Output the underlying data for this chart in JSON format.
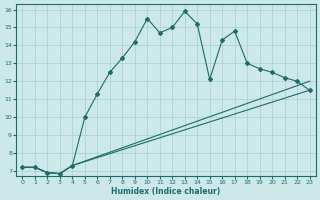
{
  "xlabel": "Humidex (Indice chaleur)",
  "bg_color": "#cce8e8",
  "grid_color": "#aacfcf",
  "line_color": "#1e6b6b",
  "xlim_min": -0.5,
  "xlim_max": 23.5,
  "ylim_min": 6.7,
  "ylim_max": 16.3,
  "xticks": [
    0,
    1,
    2,
    3,
    4,
    5,
    6,
    7,
    8,
    9,
    10,
    11,
    12,
    13,
    14,
    15,
    16,
    17,
    18,
    19,
    20,
    21,
    22,
    23
  ],
  "yticks": [
    7,
    8,
    9,
    10,
    11,
    12,
    13,
    14,
    15,
    16
  ],
  "wavy_x": [
    0,
    1,
    2,
    3,
    4,
    5,
    6,
    7,
    8,
    9,
    10,
    11,
    12,
    13,
    14,
    15,
    16,
    17,
    18,
    19,
    20,
    21,
    22,
    23
  ],
  "wavy_y": [
    7.2,
    7.2,
    6.9,
    6.85,
    7.3,
    10.0,
    11.3,
    12.5,
    13.3,
    14.2,
    15.5,
    14.7,
    15.0,
    15.9,
    15.2,
    12.1,
    14.3,
    14.8,
    13.0,
    12.7,
    12.5,
    12.2,
    12.0,
    11.5
  ],
  "line1_x": [
    0,
    1,
    2,
    3,
    4,
    23
  ],
  "line1_y": [
    7.2,
    7.2,
    6.9,
    6.85,
    7.3,
    12.0
  ],
  "line2_x": [
    0,
    1,
    2,
    3,
    4,
    23
  ],
  "line2_y": [
    7.2,
    7.2,
    6.9,
    6.85,
    7.3,
    11.5
  ]
}
